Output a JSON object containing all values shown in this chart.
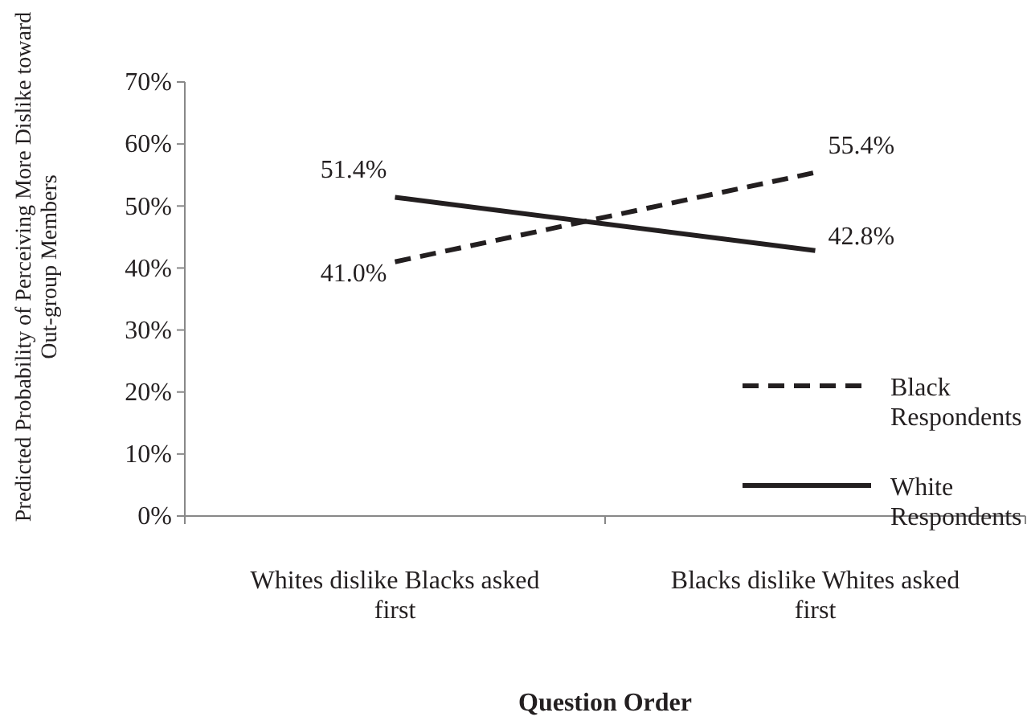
{
  "chart_data": {
    "type": "line",
    "xlabel": "Question Order",
    "ylabel": "Predicted Probability of Perceiving More Dislike toward Out-group Members",
    "categories": [
      "Whites dislike Blacks asked first",
      "Blacks dislike Whites asked first"
    ],
    "series": [
      {
        "name": "Black Respondents",
        "color": "#231f20",
        "values": [
          41.0,
          55.4
        ],
        "value_labels": [
          "41.0%",
          "55.4%"
        ],
        "line_style": "dashed"
      },
      {
        "name": "White Respondents",
        "color": "#231f20",
        "values": [
          51.4,
          42.8
        ],
        "value_labels": [
          "51.4%",
          "42.8%"
        ],
        "line_style": "solid"
      }
    ],
    "ylim": [
      0,
      70
    ],
    "yticks": [
      {
        "value": 0,
        "label": "0%"
      },
      {
        "value": 10,
        "label": "10%"
      },
      {
        "value": 20,
        "label": "20%"
      },
      {
        "value": 30,
        "label": "30%"
      },
      {
        "value": 40,
        "label": "40%"
      },
      {
        "value": 50,
        "label": "50%"
      },
      {
        "value": 60,
        "label": "60%"
      },
      {
        "value": 70,
        "label": "70%"
      }
    ],
    "grid": false,
    "legend": "right",
    "marker": "none"
  }
}
